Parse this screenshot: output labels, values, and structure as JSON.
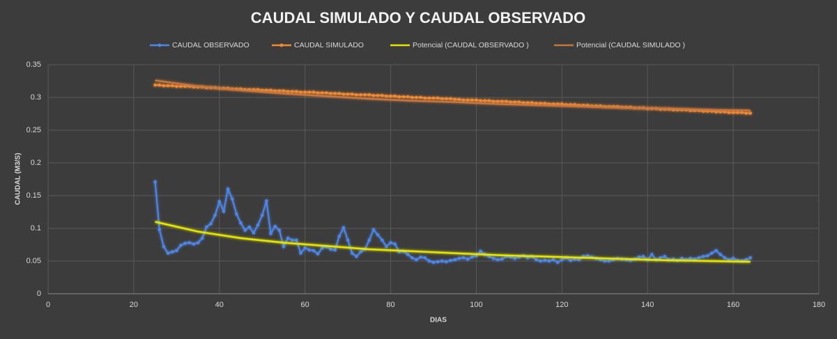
{
  "chart_data": {
    "type": "line",
    "title": "CAUDAL SIMULADO Y CAUDAL OBSERVADO",
    "xlabel": "DIAS",
    "ylabel": "CAUDAL (M3/S)",
    "xlim": [
      0,
      180
    ],
    "xticks": [
      0,
      20,
      40,
      60,
      80,
      100,
      120,
      140,
      160,
      180
    ],
    "ylim": [
      0,
      0.35
    ],
    "yticks": [
      0,
      0.05,
      0.1,
      0.15,
      0.2,
      0.25,
      0.3,
      0.35
    ],
    "grid": true,
    "legend": "top",
    "x": [
      25,
      26,
      27,
      28,
      29,
      30,
      31,
      32,
      33,
      34,
      35,
      36,
      37,
      38,
      39,
      40,
      41,
      42,
      43,
      44,
      45,
      46,
      47,
      48,
      49,
      50,
      51,
      52,
      53,
      54,
      55,
      56,
      57,
      58,
      59,
      60,
      61,
      62,
      63,
      64,
      65,
      66,
      67,
      68,
      69,
      70,
      71,
      72,
      73,
      74,
      75,
      76,
      77,
      78,
      79,
      80,
      81,
      82,
      83,
      84,
      85,
      86,
      87,
      88,
      89,
      90,
      91,
      92,
      93,
      94,
      95,
      96,
      97,
      98,
      99,
      100,
      101,
      102,
      103,
      104,
      105,
      106,
      107,
      108,
      109,
      110,
      111,
      112,
      113,
      114,
      115,
      116,
      117,
      118,
      119,
      120,
      121,
      122,
      123,
      124,
      125,
      126,
      127,
      128,
      129,
      130,
      131,
      132,
      133,
      134,
      135,
      136,
      137,
      138,
      139,
      140,
      141,
      142,
      143,
      144,
      145,
      146,
      147,
      148,
      149,
      150,
      151,
      152,
      153,
      154,
      155,
      156,
      157,
      158,
      159,
      160,
      161,
      162,
      163,
      164
    ],
    "series": [
      {
        "name": "CAUDAL OBSERVADO",
        "color": "#4f86e8",
        "marker": true,
        "values": [
          0.171,
          0.098,
          0.072,
          0.062,
          0.064,
          0.066,
          0.074,
          0.077,
          0.078,
          0.076,
          0.078,
          0.085,
          0.102,
          0.107,
          0.12,
          0.141,
          0.126,
          0.16,
          0.145,
          0.122,
          0.108,
          0.097,
          0.102,
          0.093,
          0.105,
          0.12,
          0.142,
          0.092,
          0.103,
          0.097,
          0.072,
          0.085,
          0.082,
          0.082,
          0.062,
          0.07,
          0.067,
          0.066,
          0.061,
          0.07,
          0.072,
          0.068,
          0.067,
          0.088,
          0.101,
          0.082,
          0.062,
          0.057,
          0.064,
          0.068,
          0.082,
          0.098,
          0.09,
          0.082,
          0.072,
          0.078,
          0.076,
          0.064,
          0.065,
          0.06,
          0.055,
          0.052,
          0.056,
          0.055,
          0.05,
          0.048,
          0.049,
          0.05,
          0.049,
          0.051,
          0.052,
          0.054,
          0.055,
          0.053,
          0.056,
          0.058,
          0.065,
          0.06,
          0.057,
          0.054,
          0.052,
          0.053,
          0.057,
          0.056,
          0.054,
          0.056,
          0.058,
          0.055,
          0.057,
          0.052,
          0.05,
          0.051,
          0.05,
          0.052,
          0.048,
          0.052,
          0.055,
          0.051,
          0.053,
          0.052,
          0.057,
          0.058,
          0.056,
          0.054,
          0.052,
          0.05,
          0.05,
          0.052,
          0.054,
          0.053,
          0.052,
          0.051,
          0.053,
          0.056,
          0.057,
          0.052,
          0.06,
          0.052,
          0.055,
          0.057,
          0.052,
          0.053,
          0.051,
          0.054,
          0.052,
          0.054,
          0.053,
          0.055,
          0.057,
          0.058,
          0.062,
          0.066,
          0.06,
          0.055,
          0.052,
          0.054,
          0.051,
          0.05,
          0.052,
          0.055
        ]
      },
      {
        "name": "CAUDAL SIMULADO",
        "color": "#f28a30",
        "marker": true,
        "values": [
          0.319,
          0.319,
          0.318,
          0.318,
          0.318,
          0.317,
          0.317,
          0.317,
          0.317,
          0.316,
          0.316,
          0.316,
          0.315,
          0.315,
          0.315,
          0.314,
          0.314,
          0.314,
          0.313,
          0.313,
          0.313,
          0.312,
          0.312,
          0.312,
          0.312,
          0.311,
          0.311,
          0.311,
          0.31,
          0.31,
          0.31,
          0.309,
          0.309,
          0.309,
          0.308,
          0.308,
          0.308,
          0.308,
          0.307,
          0.307,
          0.307,
          0.306,
          0.306,
          0.306,
          0.305,
          0.305,
          0.305,
          0.304,
          0.304,
          0.304,
          0.304,
          0.303,
          0.303,
          0.303,
          0.302,
          0.302,
          0.302,
          0.301,
          0.301,
          0.301,
          0.3,
          0.3,
          0.3,
          0.299,
          0.299,
          0.299,
          0.299,
          0.298,
          0.298,
          0.298,
          0.297,
          0.297,
          0.296,
          0.296,
          0.296,
          0.296,
          0.295,
          0.295,
          0.295,
          0.294,
          0.294,
          0.294,
          0.294,
          0.293,
          0.293,
          0.293,
          0.292,
          0.292,
          0.292,
          0.291,
          0.291,
          0.291,
          0.29,
          0.29,
          0.29,
          0.29,
          0.289,
          0.289,
          0.289,
          0.288,
          0.288,
          0.288,
          0.287,
          0.287,
          0.287,
          0.286,
          0.286,
          0.286,
          0.286,
          0.285,
          0.285,
          0.285,
          0.284,
          0.284,
          0.284,
          0.283,
          0.283,
          0.283,
          0.282,
          0.282,
          0.282,
          0.281,
          0.281,
          0.281,
          0.281,
          0.28,
          0.28,
          0.28,
          0.279,
          0.279,
          0.279,
          0.278,
          0.278,
          0.278,
          0.277,
          0.277,
          0.277,
          0.277,
          0.276,
          0.276
        ]
      },
      {
        "name": "Potencial (CAUDAL OBSERVADO )",
        "color": "#e6e600",
        "marker": false,
        "x": [
          25,
          35,
          45,
          55,
          65,
          75,
          85,
          95,
          105,
          115,
          125,
          135,
          145,
          155,
          164
        ],
        "values": [
          0.11,
          0.095,
          0.085,
          0.078,
          0.073,
          0.068,
          0.065,
          0.062,
          0.059,
          0.057,
          0.055,
          0.053,
          0.051,
          0.05,
          0.049
        ]
      },
      {
        "name": "Potencial (CAUDAL SIMULADO )",
        "color": "#c8763e",
        "marker": false,
        "x": [
          25,
          35,
          45,
          55,
          65,
          75,
          85,
          95,
          105,
          115,
          125,
          135,
          145,
          155,
          164
        ],
        "values": [
          0.326,
          0.317,
          0.311,
          0.306,
          0.302,
          0.298,
          0.295,
          0.293,
          0.29,
          0.288,
          0.286,
          0.284,
          0.283,
          0.281,
          0.28
        ]
      }
    ]
  }
}
